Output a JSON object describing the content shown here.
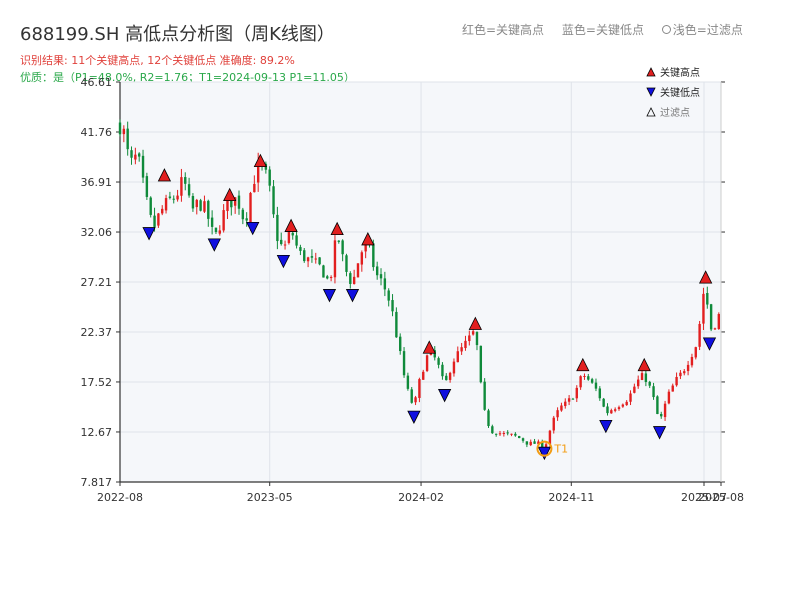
{
  "header": {
    "title": "688199.SH 高低点分析图（周K线图）",
    "result_line": "识别结果: 11个关键高点, 12个关键低点  准确度: 89.2%",
    "quality_line": "优质：是（P1=48.0%, R2=1.76；T1=2024-09-13 P1=11.05）",
    "legend_red": "红色=关键高点",
    "legend_blue": "蓝色=关键低点",
    "legend_light": "浅色=过滤点"
  },
  "colors": {
    "up": "#e21f1f",
    "down": "#0f8a3a",
    "high_marker": "#e21f1f",
    "low_marker": "#1010e0",
    "t1_ring": "#f39c12",
    "plot_bg": "#f5f7fa",
    "grid": "#dfe3ea"
  },
  "chart_data": {
    "type": "candlestick",
    "y_ticks": [
      "7.817",
      "12.67",
      "17.52",
      "22.37",
      "27.21",
      "32.06",
      "36.91",
      "41.76",
      "46.61"
    ],
    "ylim": [
      7.817,
      46.61
    ],
    "x_ticks": [
      "2022-08",
      "2023-05",
      "2024-02",
      "2024-11",
      "2025-07",
      "2025-08"
    ],
    "legend": [
      {
        "label": "关键高点",
        "marker": "triangle-up",
        "color": "#e21f1f"
      },
      {
        "label": "关键低点",
        "marker": "triangle-down",
        "color": "#1010e0"
      },
      {
        "label": "过滤点",
        "marker": "triangle-up-outline",
        "color": "#000000"
      }
    ],
    "close_path": [
      [
        "2022-08-05",
        42.5
      ],
      [
        "2022-08-19",
        38.5
      ],
      [
        "2022-09-02",
        39.5
      ],
      [
        "2022-09-16",
        35.5
      ],
      [
        "2022-09-30",
        32.3
      ],
      [
        "2022-10-14",
        34.0
      ],
      [
        "2022-10-28",
        35.0
      ],
      [
        "2022-11-11",
        35.5
      ],
      [
        "2022-11-25",
        37.2
      ],
      [
        "2022-12-09",
        34.0
      ],
      [
        "2022-12-23",
        35.0
      ],
      [
        "2023-01-06",
        34.0
      ],
      [
        "2023-01-20",
        31.2
      ],
      [
        "2023-02-03",
        33.5
      ],
      [
        "2023-02-17",
        35.0
      ],
      [
        "2023-03-03",
        35.3
      ],
      [
        "2023-03-17",
        33.0
      ],
      [
        "2023-03-31",
        37.0
      ],
      [
        "2023-04-14",
        38.6
      ],
      [
        "2023-04-28",
        37.0
      ],
      [
        "2023-05-12",
        32.0
      ],
      [
        "2023-05-26",
        30.2
      ],
      [
        "2023-06-09",
        32.3
      ],
      [
        "2023-06-23",
        30.0
      ],
      [
        "2023-07-07",
        29.5
      ],
      [
        "2023-07-21",
        29.0
      ],
      [
        "2023-08-04",
        28.5
      ],
      [
        "2023-08-18",
        27.0
      ],
      [
        "2023-09-01",
        32.0
      ],
      [
        "2023-09-15",
        28.5
      ],
      [
        "2023-09-29",
        27.0
      ],
      [
        "2023-10-13",
        30.0
      ],
      [
        "2023-10-27",
        31.0
      ],
      [
        "2023-11-10",
        28.0
      ],
      [
        "2023-11-24",
        27.0
      ],
      [
        "2023-12-08",
        25.0
      ],
      [
        "2023-12-22",
        21.0
      ],
      [
        "2024-01-05",
        17.0
      ],
      [
        "2024-01-19",
        15.0
      ],
      [
        "2024-02-02",
        18.5
      ],
      [
        "2024-02-16",
        20.5
      ],
      [
        "2024-03-01",
        19.5
      ],
      [
        "2024-03-15",
        17.0
      ],
      [
        "2024-03-29",
        19.5
      ],
      [
        "2024-04-12",
        20.5
      ],
      [
        "2024-04-26",
        21.5
      ],
      [
        "2024-05-10",
        22.5
      ],
      [
        "2024-05-24",
        15.0
      ],
      [
        "2024-06-07",
        12.8
      ],
      [
        "2024-06-21",
        12.6
      ],
      [
        "2024-07-05",
        12.4
      ],
      [
        "2024-07-19",
        12.3
      ],
      [
        "2024-08-02",
        12.0
      ],
      [
        "2024-08-16",
        11.5
      ],
      [
        "2024-08-30",
        11.6
      ],
      [
        "2024-09-13",
        11.1
      ],
      [
        "2024-09-27",
        13.5
      ],
      [
        "2024-10-11",
        15.0
      ],
      [
        "2024-10-25",
        15.5
      ],
      [
        "2024-11-08",
        16.5
      ],
      [
        "2024-11-22",
        18.3
      ],
      [
        "2024-12-06",
        17.5
      ],
      [
        "2024-12-20",
        16.5
      ],
      [
        "2025-01-03",
        14.5
      ],
      [
        "2025-01-17",
        15.0
      ],
      [
        "2025-01-31",
        15.5
      ],
      [
        "2025-02-14",
        16.0
      ],
      [
        "2025-02-28",
        17.5
      ],
      [
        "2025-03-14",
        18.2
      ],
      [
        "2025-03-28",
        16.5
      ],
      [
        "2025-04-11",
        13.5
      ],
      [
        "2025-04-25",
        16.0
      ],
      [
        "2025-05-09",
        17.5
      ],
      [
        "2025-05-23",
        18.5
      ],
      [
        "2025-06-06",
        20.0
      ],
      [
        "2025-06-20",
        21.5
      ],
      [
        "2025-06-27",
        25.5
      ],
      [
        "2025-07-04",
        27.0
      ],
      [
        "2025-07-11",
        22.5
      ],
      [
        "2025-07-18",
        23.0
      ],
      [
        "2025-07-25",
        23.5
      ],
      [
        "2025-08-01",
        24.5
      ]
    ],
    "highs": [
      {
        "date": "2022-10-21",
        "price": 37.2
      },
      {
        "date": "2023-02-17",
        "price": 35.3
      },
      {
        "date": "2023-04-14",
        "price": 38.6
      },
      {
        "date": "2023-06-09",
        "price": 32.3
      },
      {
        "date": "2023-09-01",
        "price": 32.0
      },
      {
        "date": "2023-10-27",
        "price": 31.0
      },
      {
        "date": "2024-02-16",
        "price": 20.5
      },
      {
        "date": "2024-05-10",
        "price": 22.8
      },
      {
        "date": "2024-11-22",
        "price": 18.8
      },
      {
        "date": "2025-03-14",
        "price": 18.8
      },
      {
        "date": "2025-07-04",
        "price": 27.3
      }
    ],
    "lows": [
      {
        "date": "2022-09-23",
        "price": 32.3
      },
      {
        "date": "2023-01-20",
        "price": 31.2
      },
      {
        "date": "2023-03-31",
        "price": 32.8
      },
      {
        "date": "2023-05-26",
        "price": 29.6
      },
      {
        "date": "2023-08-18",
        "price": 26.3
      },
      {
        "date": "2023-09-29",
        "price": 26.3
      },
      {
        "date": "2024-01-19",
        "price": 14.5
      },
      {
        "date": "2024-03-15",
        "price": 16.6
      },
      {
        "date": "2024-09-13",
        "price": 11.0
      },
      {
        "date": "2025-01-03",
        "price": 13.6
      },
      {
        "date": "2025-04-11",
        "price": 13.0
      },
      {
        "date": "2025-07-11",
        "price": 21.6
      }
    ],
    "t1": {
      "label": "T1",
      "date": "2024-09-13",
      "price": 11.05
    }
  }
}
